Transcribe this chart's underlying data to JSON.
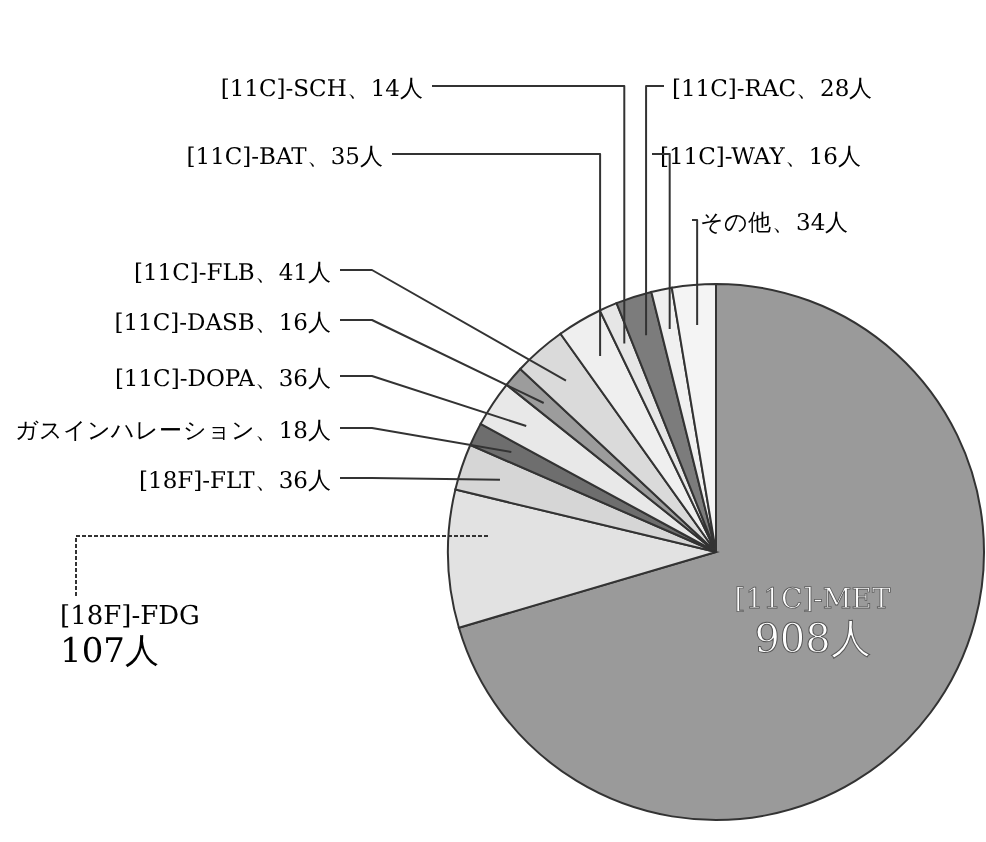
{
  "chart_data": {
    "type": "pie",
    "categories": [
      "[11C]-MET",
      "[18F]-FDG",
      "[18F]-FLT",
      "ガスインハレーション",
      "[11C]-DOPA",
      "[11C]-DASB",
      "[11C]-FLB",
      "[11C]-BAT",
      "[11C]-SCH",
      "[11C]-RAC",
      "[11C]-WAY",
      "その他"
    ],
    "values": [
      908,
      107,
      36,
      18,
      36,
      16,
      41,
      35,
      14,
      28,
      16,
      34
    ],
    "value_labels": [
      "908人",
      "107人",
      "36人",
      "18人",
      "36人",
      "16人",
      "41人",
      "35人",
      "14人",
      "28人",
      "16人",
      "34人"
    ],
    "colors": [
      "#9a9a9a",
      "#e2e2e2",
      "#d6d6d6",
      "#6e6e6e",
      "#e8e8e8",
      "#9c9c9c",
      "#dadada",
      "#efefef",
      "#e6e6e6",
      "#7c7c7c",
      "#f0f0f0",
      "#f4f4f4"
    ]
  }
}
